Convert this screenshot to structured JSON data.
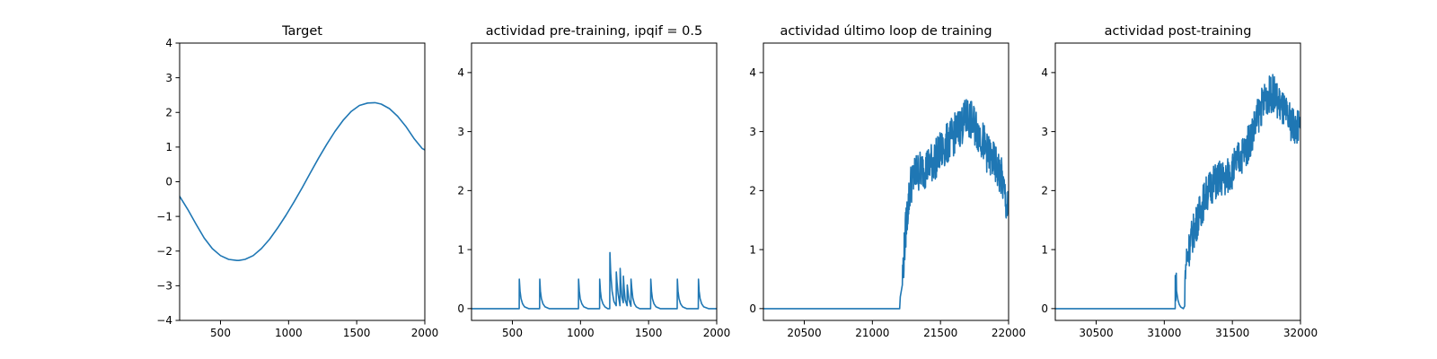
{
  "chart_data": [
    {
      "type": "line",
      "title": "Target",
      "xlim": [
        200,
        2000
      ],
      "ylim": [
        -4,
        4
      ],
      "xticks": [
        500,
        1000,
        1500,
        2000
      ],
      "yticks": [
        -4,
        -3,
        -2,
        -1,
        0,
        1,
        2,
        3,
        4
      ],
      "color": "#1f77b4",
      "series": [
        {
          "x": [
            200,
            260,
            320,
            380,
            440,
            500,
            560,
            620,
            635,
            680,
            740,
            800,
            860,
            920,
            980,
            1040,
            1100,
            1160,
            1220,
            1280,
            1340,
            1400,
            1460,
            1520,
            1580,
            1635,
            1680,
            1740,
            1800,
            1860,
            1920,
            1980,
            2000
          ],
          "y": [
            -0.42,
            -0.8,
            -1.22,
            -1.62,
            -1.93,
            -2.13,
            -2.24,
            -2.27,
            -2.27,
            -2.24,
            -2.13,
            -1.93,
            -1.66,
            -1.33,
            -0.97,
            -0.58,
            -0.17,
            0.26,
            0.68,
            1.08,
            1.45,
            1.77,
            2.03,
            2.2,
            2.27,
            2.28,
            2.24,
            2.11,
            1.89,
            1.6,
            1.25,
            0.96,
            0.92
          ]
        }
      ]
    },
    {
      "type": "line",
      "title": "actividad pre-training, ipqif = 0.5",
      "xlim": [
        200,
        2000
      ],
      "ylim": [
        -0.2,
        4.5
      ],
      "xticks": [
        500,
        1000,
        1500,
        2000
      ],
      "yticks": [
        0,
        1,
        2,
        3,
        4
      ],
      "color": "#1f77b4",
      "series": [
        {
          "x": [
            200,
            550,
            551,
            556,
            563,
            575,
            590,
            620,
            700,
            701,
            706,
            713,
            725,
            740,
            770,
            985,
            986,
            991,
            998,
            1010,
            1025,
            1055,
            1140,
            1141,
            1146,
            1153,
            1165,
            1180,
            1200,
            1215,
            1216,
            1222,
            1232,
            1246,
            1262,
            1263,
            1268,
            1276,
            1290,
            1291,
            1296,
            1304,
            1314,
            1315,
            1320,
            1328,
            1342,
            1343,
            1348,
            1356,
            1370,
            1371,
            1376,
            1384,
            1396,
            1410,
            1435,
            1515,
            1516,
            1521,
            1528,
            1540,
            1555,
            1585,
            1710,
            1711,
            1716,
            1723,
            1735,
            1750,
            1780,
            1865,
            1866,
            1871,
            1878,
            1890,
            1905,
            1940,
            2000
          ],
          "y": [
            0,
            0,
            0.5,
            0.3,
            0.17,
            0.08,
            0.03,
            0,
            0,
            0.5,
            0.3,
            0.17,
            0.08,
            0.03,
            0,
            0,
            0.5,
            0.3,
            0.17,
            0.08,
            0.03,
            0,
            0,
            0.5,
            0.3,
            0.17,
            0.08,
            0.03,
            0,
            0,
            0.95,
            0.6,
            0.3,
            0.12,
            0.05,
            0.62,
            0.45,
            0.25,
            0.05,
            0.68,
            0.45,
            0.2,
            0.1,
            0.55,
            0.35,
            0.15,
            0.05,
            0.4,
            0.3,
            0.15,
            0.04,
            0.5,
            0.35,
            0.18,
            0.08,
            0.03,
            0,
            0,
            0.5,
            0.3,
            0.17,
            0.08,
            0.03,
            0,
            0,
            0.5,
            0.3,
            0.17,
            0.08,
            0.03,
            0,
            0,
            0.5,
            0.3,
            0.17,
            0.08,
            0.03,
            0,
            0
          ]
        }
      ]
    },
    {
      "type": "line",
      "title": "actividad último loop de training",
      "xlim": [
        20200,
        22000
      ],
      "ylim": [
        -0.2,
        4.5
      ],
      "xticks": [
        20500,
        21000,
        21500,
        22000
      ],
      "yticks": [
        0,
        1,
        2,
        3,
        4
      ],
      "color": "#1f77b4",
      "noise": 0.35,
      "series": [
        {
          "x": [
            20200,
            21200,
            21205,
            21220,
            21250,
            21280,
            21320,
            21360,
            21400,
            21450,
            21500,
            21550,
            21600,
            21650,
            21700,
            21750,
            21800,
            21850,
            21900,
            21950,
            21980,
            22000
          ],
          "y": [
            0,
            0,
            0.2,
            0.5,
            1.5,
            2.1,
            2.3,
            2.35,
            2.4,
            2.5,
            2.65,
            2.8,
            2.95,
            3.1,
            3.25,
            3.1,
            2.9,
            2.6,
            2.45,
            2.2,
            1.8,
            1.6
          ]
        }
      ]
    },
    {
      "type": "line",
      "title": "actividad post-training",
      "xlim": [
        30200,
        32000
      ],
      "ylim": [
        -0.2,
        4.5
      ],
      "xticks": [
        30500,
        31000,
        31500,
        32000
      ],
      "yticks": [
        0,
        1,
        2,
        3,
        4
      ],
      "color": "#1f77b4",
      "noise": 0.32,
      "series": [
        {
          "x": [
            30200,
            31080,
            31081,
            31090,
            31100,
            31110,
            31120,
            31140,
            31150,
            31160,
            31200,
            31250,
            31300,
            31350,
            31400,
            31450,
            31500,
            31550,
            31600,
            31650,
            31700,
            31750,
            31800,
            31850,
            31900,
            31950,
            32000
          ],
          "y": [
            0,
            0,
            0.5,
            0.3,
            0.15,
            0.07,
            0.03,
            0,
            0.35,
            0.8,
            1.2,
            1.55,
            1.9,
            2.1,
            2.2,
            2.2,
            2.35,
            2.55,
            2.7,
            3.0,
            3.35,
            3.6,
            3.65,
            3.45,
            3.25,
            3.1,
            3.05
          ]
        }
      ]
    }
  ]
}
